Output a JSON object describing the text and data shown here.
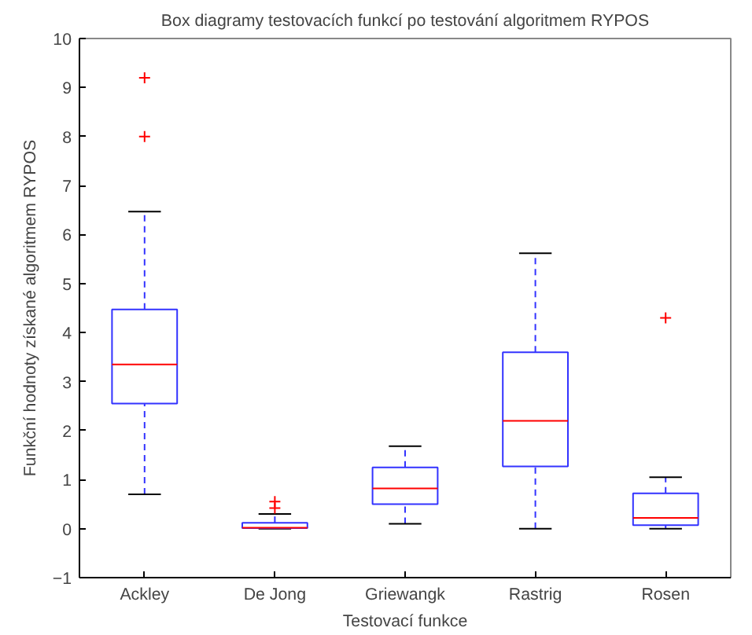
{
  "chart_data": {
    "type": "box",
    "title": "Box diagramy testovacích funkcí po testování algoritmem RYPOS",
    "xlabel": "Testovací funkce",
    "ylabel": "Funkční hodnoty získané algoritmem RYPOS",
    "categories": [
      "Ackley",
      "De Jong",
      "Griewangk",
      "Rastrig",
      "Rosen"
    ],
    "boxes": [
      {
        "low": 0.7,
        "q1": 2.55,
        "median": 3.35,
        "q3": 4.47,
        "high": 6.47,
        "outliers": [
          9.2,
          8.0
        ]
      },
      {
        "low": 0,
        "q1": 0.01,
        "median": 0.02,
        "q3": 0.12,
        "high": 0.3,
        "outliers": [
          0.42,
          0.55
        ]
      },
      {
        "low": 0.1,
        "q1": 0.5,
        "median": 0.82,
        "q3": 1.25,
        "high": 1.68
      },
      {
        "low": 0,
        "q1": 1.27,
        "median": 2.2,
        "q3": 3.6,
        "high": 5.62
      },
      {
        "low": 0,
        "q1": 0.07,
        "median": 0.22,
        "q3": 0.72,
        "high": 1.05,
        "outliers": [
          4.3
        ]
      }
    ],
    "color": "#3333ff",
    "ylim": [
      -1,
      10
    ],
    "yticks": [
      -1,
      0,
      1,
      2,
      3,
      4,
      5,
      6,
      7,
      8,
      9,
      10
    ],
    "grid": false
  }
}
